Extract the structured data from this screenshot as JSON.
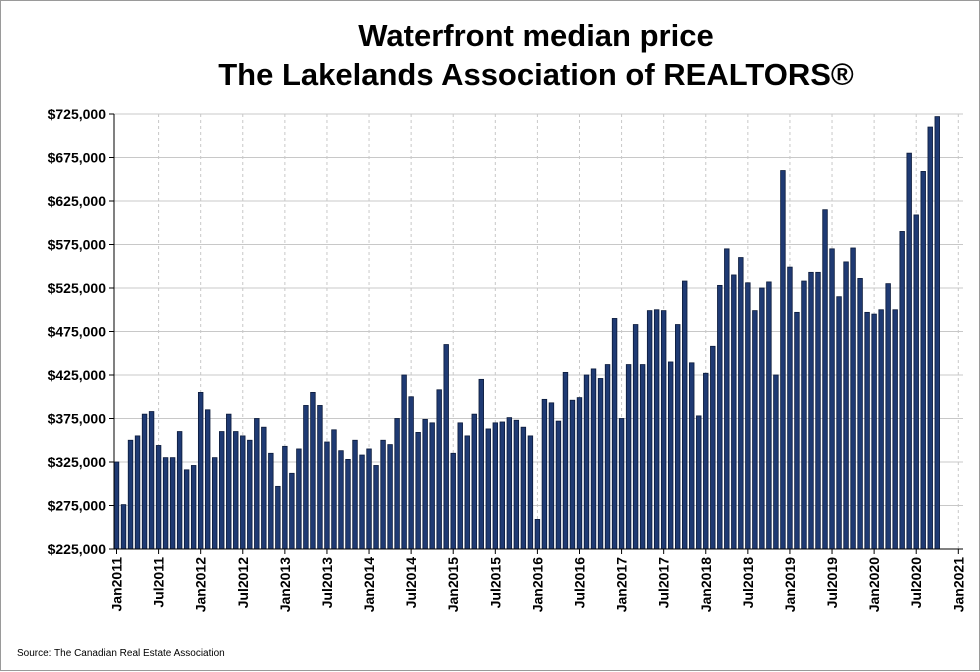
{
  "chart_data": {
    "type": "bar",
    "title": "Waterfront median price",
    "subtitle": "The Lakelands Association of REALTORS®",
    "source": "Source: The Canadian Real Estate Association",
    "ylim": [
      225000,
      725000
    ],
    "grid": true,
    "y_ticks": [
      "$225,000",
      "$275,000",
      "$325,000",
      "$375,000",
      "$425,000",
      "$475,000",
      "$525,000",
      "$575,000",
      "$625,000",
      "$675,000",
      "$725,000"
    ],
    "y_tick_values": [
      225000,
      275000,
      325000,
      375000,
      425000,
      475000,
      525000,
      575000,
      625000,
      675000,
      725000
    ],
    "x_ticks": [
      "Jan2011",
      "Jul2011",
      "Jan2012",
      "Jul2012",
      "Jan2013",
      "Jul2013",
      "Jan2014",
      "Jul2014",
      "Jan2015",
      "Jul2015",
      "Jan2016",
      "Jul2016",
      "Jan2017",
      "Jul2017",
      "Jan2018",
      "Jul2018",
      "Jan2019",
      "Jul2019",
      "Jan2020",
      "Jul2020",
      "Jan2021"
    ],
    "bar_color": "#1f3a73",
    "values": [
      325000,
      276000,
      350000,
      355000,
      380000,
      383000,
      344000,
      330000,
      330000,
      360000,
      316000,
      321000,
      405000,
      385000,
      330000,
      360000,
      380000,
      360000,
      355000,
      350000,
      375000,
      365000,
      335000,
      297000,
      343000,
      312000,
      340000,
      390000,
      405000,
      390000,
      348000,
      362000,
      338000,
      328000,
      350000,
      333000,
      340000,
      321000,
      350000,
      345000,
      375000,
      425000,
      400000,
      359000,
      374000,
      370000,
      408000,
      460000,
      335000,
      370000,
      355000,
      380000,
      420000,
      363000,
      370000,
      371000,
      376000,
      373000,
      365000,
      355000,
      259000,
      397000,
      393000,
      372000,
      428000,
      396000,
      399000,
      425000,
      432000,
      421000,
      437000,
      490000,
      375000,
      437000,
      483000,
      437000,
      499000,
      500000,
      499000,
      440000,
      483000,
      533000,
      439000,
      378000,
      427000,
      458000,
      528000,
      570000,
      540000,
      560000,
      531000,
      499000,
      525000,
      532000,
      425000,
      660000,
      549000,
      497000,
      533000,
      543000,
      543000,
      615000,
      570000,
      515000,
      555000,
      571000,
      536000,
      497000,
      495000,
      500000,
      530000,
      500000,
      590000,
      680000,
      609000,
      659000,
      710000,
      722000
    ]
  }
}
